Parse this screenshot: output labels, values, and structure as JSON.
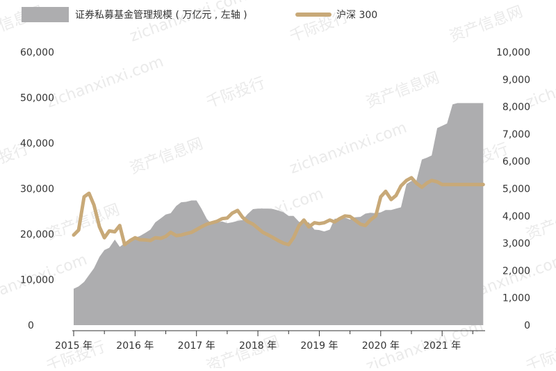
{
  "chart_data": {
    "type": "area",
    "legend_placement": "top",
    "grid": false,
    "x_tick_labels": [
      "2015 年",
      "2016 年",
      "2017 年",
      "2018 年",
      "2019 年",
      "2020 年",
      "2021 年"
    ],
    "x_range": [
      2015.0,
      2021.7
    ],
    "y_left": {
      "ticks": [
        "0",
        "10,000",
        "20,000",
        "30,000",
        "40,000",
        "50,000",
        "60,000"
      ],
      "ylim": [
        0,
        60000
      ]
    },
    "y_right": {
      "ticks": [
        "0",
        "1,000",
        "2,000",
        "3,000",
        "4,000",
        "5,000",
        "6,000",
        "7,000",
        "8,000",
        "9,000",
        "10,000"
      ],
      "ylim": [
        0,
        10000
      ]
    },
    "series": [
      {
        "name": "证券私募基金管理规模 ( 万亿元 , 左轴 )",
        "type": "area",
        "axis": "left",
        "color": "#adadaf",
        "x": [
          2015.0,
          2015.08,
          2015.17,
          2015.25,
          2015.33,
          2015.42,
          2015.5,
          2015.58,
          2015.67,
          2015.75,
          2015.83,
          2015.92,
          2016.0,
          2016.08,
          2016.17,
          2016.25,
          2016.33,
          2016.42,
          2016.5,
          2016.58,
          2016.67,
          2016.75,
          2016.83,
          2016.92,
          2017.0,
          2017.08,
          2017.17,
          2017.25,
          2017.33,
          2017.42,
          2017.5,
          2017.58,
          2017.67,
          2017.75,
          2017.83,
          2017.92,
          2018.0,
          2018.08,
          2018.17,
          2018.25,
          2018.33,
          2018.42,
          2018.5,
          2018.58,
          2018.67,
          2018.75,
          2018.83,
          2018.92,
          2019.0,
          2019.08,
          2019.17,
          2019.25,
          2019.33,
          2019.42,
          2019.5,
          2019.58,
          2019.67,
          2019.75,
          2019.83,
          2019.92,
          2020.0,
          2020.08,
          2020.17,
          2020.25,
          2020.33,
          2020.42,
          2020.5,
          2020.58,
          2020.67,
          2020.75,
          2020.83,
          2020.92,
          2021.0,
          2021.08,
          2021.17,
          2021.25,
          2021.33,
          2021.42,
          2021.5,
          2021.58,
          2021.67
        ],
        "values": [
          8000,
          8500,
          9500,
          11000,
          12500,
          15000,
          16500,
          17000,
          18800,
          17200,
          18000,
          18800,
          19200,
          19600,
          20300,
          21000,
          22600,
          23500,
          24300,
          24600,
          26200,
          27000,
          27100,
          27400,
          27400,
          25600,
          23300,
          22200,
          22600,
          22800,
          22400,
          22600,
          22900,
          23100,
          24400,
          25500,
          25600,
          25600,
          25600,
          25500,
          25200,
          24800,
          24000,
          24000,
          22700,
          22600,
          22600,
          21000,
          20900,
          20600,
          21000,
          23400,
          23400,
          23600,
          23200,
          23700,
          23800,
          24500,
          24700,
          24600,
          24800,
          25300,
          25300,
          25600,
          25900,
          31000,
          31700,
          31700,
          36400,
          36800,
          37300,
          43300,
          43800,
          44300,
          48500,
          48800,
          48800,
          48800,
          48800,
          48800,
          48800
        ]
      },
      {
        "name": "沪深 300",
        "type": "line",
        "axis": "right",
        "color": "#c8a978",
        "x": [
          2015.0,
          2015.08,
          2015.17,
          2015.25,
          2015.33,
          2015.42,
          2015.5,
          2015.58,
          2015.67,
          2015.75,
          2015.83,
          2015.92,
          2016.0,
          2016.08,
          2016.17,
          2016.25,
          2016.33,
          2016.42,
          2016.5,
          2016.58,
          2016.67,
          2016.75,
          2016.83,
          2016.92,
          2017.0,
          2017.08,
          2017.17,
          2017.25,
          2017.33,
          2017.42,
          2017.5,
          2017.58,
          2017.67,
          2017.75,
          2017.83,
          2017.92,
          2018.0,
          2018.08,
          2018.17,
          2018.25,
          2018.33,
          2018.42,
          2018.5,
          2018.58,
          2018.67,
          2018.75,
          2018.83,
          2018.92,
          2019.0,
          2019.08,
          2019.17,
          2019.25,
          2019.33,
          2019.42,
          2019.5,
          2019.58,
          2019.67,
          2019.75,
          2019.83,
          2019.92,
          2020.0,
          2020.08,
          2020.17,
          2020.25,
          2020.33,
          2020.42,
          2020.5,
          2020.58,
          2020.67,
          2020.75,
          2020.83,
          2020.92,
          2021.0,
          2021.08,
          2021.17,
          2021.25,
          2021.33,
          2021.42,
          2021.5,
          2021.58,
          2021.67
        ],
        "values": [
          3300,
          3480,
          4700,
          4830,
          4400,
          3600,
          3200,
          3450,
          3420,
          3650,
          2950,
          3100,
          3200,
          3130,
          3120,
          3100,
          3200,
          3180,
          3250,
          3400,
          3280,
          3300,
          3350,
          3400,
          3500,
          3600,
          3700,
          3750,
          3800,
          3900,
          3920,
          4100,
          4200,
          3950,
          3800,
          3700,
          3550,
          3400,
          3300,
          3200,
          3100,
          3000,
          2950,
          3200,
          3650,
          3850,
          3600,
          3750,
          3720,
          3750,
          3850,
          3780,
          3900,
          4000,
          3980,
          3850,
          3700,
          3650,
          3850,
          4000,
          4700,
          4900,
          4600,
          4750,
          5100,
          5300,
          5400,
          5200,
          5050,
          5200,
          5300,
          5250,
          5150,
          5150,
          5150,
          5150,
          5150,
          5150,
          5150,
          5150,
          5150
        ]
      }
    ]
  }
}
